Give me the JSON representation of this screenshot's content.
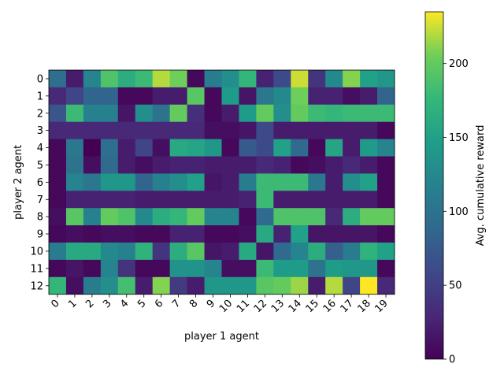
{
  "chart_data": {
    "type": "heatmap",
    "xlabel": "player 1 agent",
    "ylabel": "player 2 agent",
    "x": [
      "0",
      "1",
      "2",
      "3",
      "4",
      "5",
      "6",
      "7",
      "8",
      "9",
      "10",
      "11",
      "12",
      "13",
      "14",
      "15",
      "16",
      "17",
      "18",
      "19"
    ],
    "y": [
      "0",
      "1",
      "2",
      "3",
      "4",
      "5",
      "6",
      "7",
      "8",
      "9",
      "10",
      "11",
      "12"
    ],
    "colormap": "viridis",
    "colorbar": {
      "label": "Avg. cumulative reward",
      "range": [
        0,
        235
      ],
      "ticks": [
        0,
        50,
        100,
        150,
        200
      ]
    },
    "values": [
      [
        95,
        20,
        120,
        190,
        165,
        180,
        220,
        205,
        5,
        110,
        130,
        175,
        25,
        60,
        225,
        40,
        125,
        210,
        150,
        140
      ],
      [
        30,
        55,
        85,
        85,
        5,
        5,
        20,
        20,
        195,
        5,
        145,
        15,
        105,
        125,
        205,
        25,
        25,
        10,
        20,
        85
      ],
      [
        70,
        180,
        115,
        115,
        15,
        130,
        100,
        200,
        35,
        5,
        20,
        145,
        200,
        130,
        200,
        180,
        175,
        180,
        180,
        180
      ],
      [
        30,
        30,
        30,
        30,
        30,
        30,
        30,
        30,
        30,
        10,
        10,
        15,
        60,
        20,
        20,
        20,
        20,
        20,
        20,
        5
      ],
      [
        5,
        105,
        0,
        95,
        20,
        55,
        10,
        160,
        155,
        140,
        5,
        75,
        60,
        150,
        90,
        5,
        155,
        20,
        145,
        120
      ],
      [
        5,
        100,
        10,
        90,
        20,
        10,
        20,
        25,
        25,
        20,
        20,
        20,
        30,
        25,
        5,
        10,
        20,
        30,
        20,
        5
      ],
      [
        5,
        120,
        105,
        140,
        140,
        85,
        115,
        130,
        150,
        15,
        20,
        110,
        180,
        180,
        180,
        105,
        20,
        130,
        150,
        5
      ],
      [
        5,
        25,
        25,
        25,
        25,
        20,
        20,
        20,
        20,
        20,
        20,
        25,
        180,
        20,
        20,
        20,
        20,
        20,
        20,
        5
      ],
      [
        10,
        195,
        115,
        200,
        190,
        125,
        165,
        175,
        200,
        120,
        120,
        5,
        90,
        190,
        190,
        190,
        30,
        165,
        200,
        200
      ],
      [
        5,
        10,
        5,
        10,
        10,
        5,
        5,
        25,
        25,
        5,
        5,
        10,
        160,
        25,
        150,
        15,
        15,
        15,
        15,
        5
      ],
      [
        110,
        160,
        160,
        125,
        115,
        170,
        40,
        165,
        195,
        15,
        20,
        160,
        15,
        90,
        120,
        165,
        80,
        110,
        170,
        150
      ],
      [
        5,
        15,
        5,
        120,
        40,
        5,
        5,
        135,
        135,
        120,
        10,
        10,
        180,
        145,
        145,
        100,
        145,
        140,
        140,
        5
      ],
      [
        175,
        10,
        110,
        130,
        185,
        20,
        210,
        45,
        20,
        140,
        140,
        140,
        195,
        200,
        215,
        20,
        220,
        55,
        235,
        30
      ]
    ]
  }
}
